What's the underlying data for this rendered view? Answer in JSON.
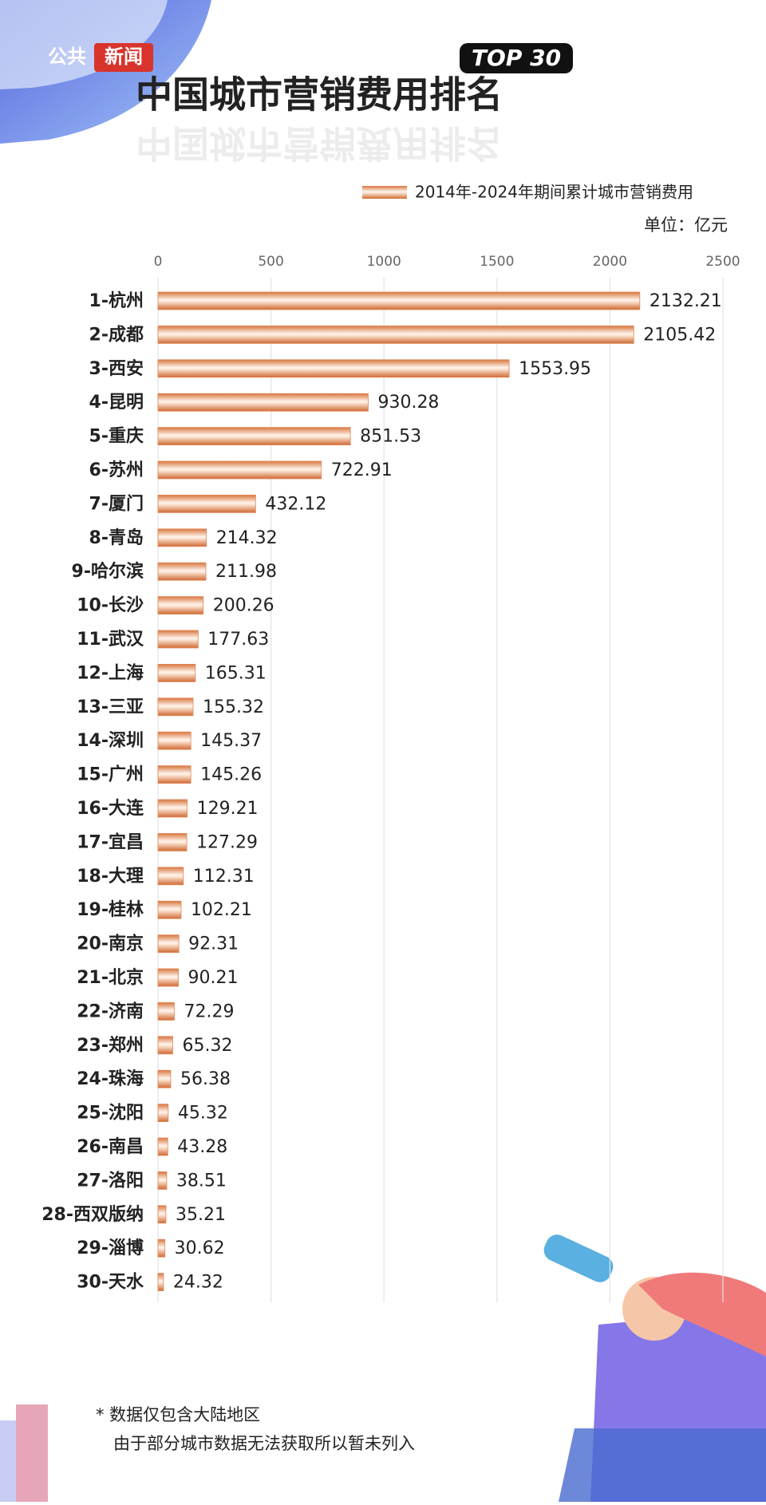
{
  "logo": [
    "公共",
    "新闻"
  ],
  "chart_data": {
    "type": "bar",
    "orientation": "horizontal",
    "badge": "TOP 30",
    "title": "中国城市营销费用排名",
    "unit": "单位：亿元",
    "categories": [
      "1-杭州",
      "2-成都",
      "3-西安",
      "4-昆明",
      "5-重庆",
      "6-苏州",
      "7-厦门",
      "8-青岛",
      "9-哈尔滨",
      "10-长沙",
      "11-武汉",
      "12-上海",
      "13-三亚",
      "14-深圳",
      "15-广州",
      "16-大连",
      "17-宜昌",
      "18-大理",
      "19-桂林",
      "20-南京",
      "21-北京",
      "22-济南",
      "23-郑州",
      "24-珠海",
      "25-沈阳",
      "26-南昌",
      "27-洛阳",
      "28-西双版纳",
      "29-淄博",
      "30-天水"
    ],
    "series": [
      {
        "name": "2014年-2024年期间累计城市营销费用",
        "color": "#e0875a",
        "values": [
          2132.21,
          2105.42,
          1553.95,
          930.28,
          851.53,
          722.91,
          432.12,
          214.32,
          211.98,
          200.26,
          177.63,
          165.31,
          155.32,
          145.37,
          145.26,
          129.21,
          127.29,
          112.31,
          102.21,
          92.31,
          90.21,
          72.29,
          65.32,
          56.38,
          45.32,
          43.28,
          38.51,
          35.21,
          30.62,
          24.32
        ]
      }
    ],
    "xlim": [
      0,
      2500
    ],
    "xticks": [
      0,
      500,
      1000,
      1500,
      2000,
      2500
    ],
    "grid": true,
    "legend": "top-right",
    "notes": [
      "* 数据仅包含大陆地区",
      "由于部分城市数据无法获取所以暂未列入"
    ]
  }
}
